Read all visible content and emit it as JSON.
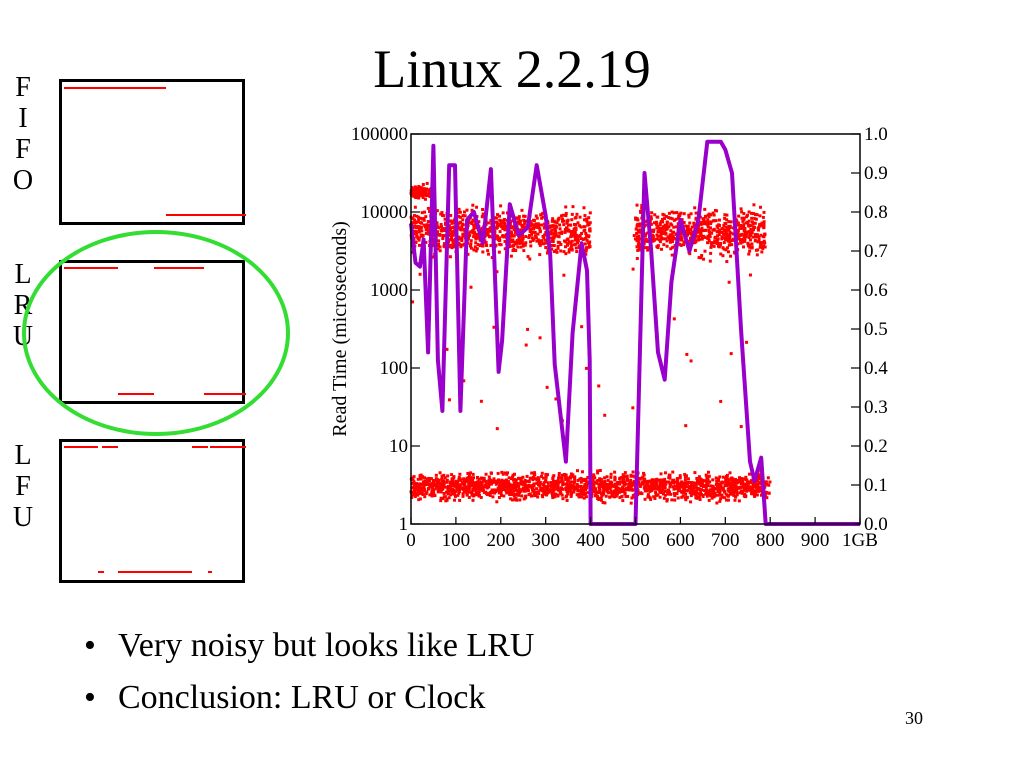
{
  "slide": {
    "title": "Linux 2.2.19",
    "page_number": "30"
  },
  "policies": [
    {
      "name": "FIFO",
      "letters": [
        "F",
        "I",
        "F",
        "O"
      ]
    },
    {
      "name": "LRU",
      "letters": [
        "L",
        "R",
        "U"
      ]
    },
    {
      "name": "LFU",
      "letters": [
        "L",
        "F",
        "U"
      ]
    }
  ],
  "bullets": [
    "Very noisy but looks like LRU",
    "Conclusion:  LRU or Clock"
  ],
  "colors": {
    "scatter": "#ff0000",
    "line": "#9900cc",
    "highlight_circle": "#33dd33"
  },
  "chart_data": {
    "type": "scatter",
    "ylabel": "Read Time (microseconds)",
    "y_scale": "log",
    "ylim": [
      1,
      100000
    ],
    "y_ticks": [
      "1",
      "10",
      "100",
      "1000",
      "10000",
      "100000"
    ],
    "y2lim": [
      0.0,
      1.0
    ],
    "y2_ticks": [
      "0.0",
      "0.1",
      "0.2",
      "0.3",
      "0.4",
      "0.5",
      "0.6",
      "0.7",
      "0.8",
      "0.9",
      "1.0"
    ],
    "xlim": [
      0,
      1000
    ],
    "x_ticks": [
      "0",
      "100",
      "200",
      "300",
      "400",
      "500",
      "600",
      "700",
      "800",
      "900",
      "1GB"
    ],
    "series": [
      {
        "kind": "scatter",
        "bands": [
          {
            "x_start": 0,
            "x_end": 800,
            "y_center": 3,
            "spread": 0.15
          },
          {
            "x_start": 0,
            "x_end": 400,
            "y_center": 5500,
            "spread": 0.25
          },
          {
            "x_start": 0,
            "x_end": 50,
            "y_center": 18000,
            "spread": 0.08
          },
          {
            "x_start": 500,
            "x_end": 790,
            "y_center": 5500,
            "spread": 0.25
          }
        ]
      },
      {
        "kind": "line",
        "axis": "right",
        "points": [
          [
            0,
            0.77
          ],
          [
            10,
            0.67
          ],
          [
            20,
            0.66
          ],
          [
            28,
            0.73
          ],
          [
            38,
            0.44
          ],
          [
            50,
            0.97
          ],
          [
            60,
            0.42
          ],
          [
            70,
            0.29
          ],
          [
            85,
            0.92
          ],
          [
            98,
            0.92
          ],
          [
            110,
            0.29
          ],
          [
            125,
            0.78
          ],
          [
            140,
            0.8
          ],
          [
            160,
            0.72
          ],
          [
            178,
            0.91
          ],
          [
            195,
            0.39
          ],
          [
            203,
            0.47
          ],
          [
            220,
            0.82
          ],
          [
            240,
            0.74
          ],
          [
            260,
            0.76
          ],
          [
            280,
            0.92
          ],
          [
            300,
            0.79
          ],
          [
            310,
            0.69
          ],
          [
            320,
            0.41
          ],
          [
            333,
            0.28
          ],
          [
            345,
            0.16
          ],
          [
            360,
            0.49
          ],
          [
            380,
            0.72
          ],
          [
            392,
            0.65
          ],
          [
            398,
            0.42
          ],
          [
            400,
            0.0
          ],
          [
            500,
            0.0
          ],
          [
            520,
            0.9
          ],
          [
            535,
            0.7
          ],
          [
            550,
            0.44
          ],
          [
            565,
            0.37
          ],
          [
            580,
            0.62
          ],
          [
            600,
            0.78
          ],
          [
            620,
            0.7
          ],
          [
            640,
            0.78
          ],
          [
            660,
            0.98
          ],
          [
            690,
            0.98
          ],
          [
            700,
            0.96
          ],
          [
            715,
            0.9
          ],
          [
            735,
            0.5
          ],
          [
            755,
            0.16
          ],
          [
            765,
            0.11
          ],
          [
            780,
            0.17
          ],
          [
            790,
            0.0
          ],
          [
            1000,
            0.0
          ]
        ]
      }
    ]
  }
}
